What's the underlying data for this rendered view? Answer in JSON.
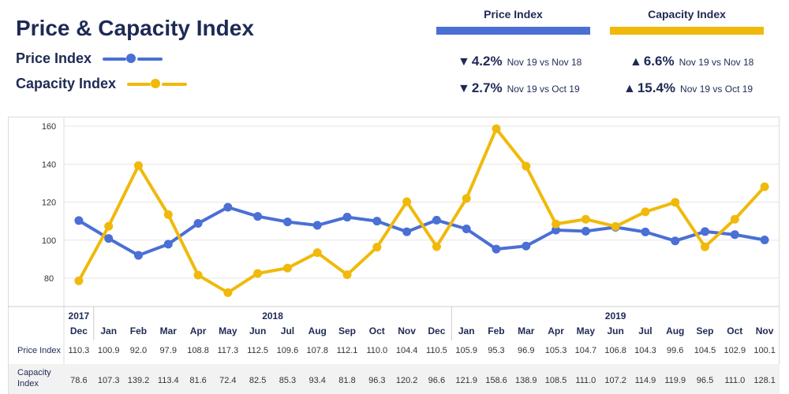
{
  "header": {
    "title": "Price & Capacity Index",
    "legend_price": "Price Index",
    "legend_capacity": "Capacity Index"
  },
  "colors": {
    "price": "#4a6fd5",
    "capacity": "#f0b90b",
    "text": "#1e2a55",
    "grid": "#e6e6e6",
    "row_alt": "#f2f2f2"
  },
  "kpis": {
    "price": {
      "heading": "Price Index",
      "change1": {
        "arrow": "▼",
        "pct": "4.2%",
        "label": "Nov 19 vs Nov 18"
      },
      "change2": {
        "arrow": "▼",
        "pct": "2.7%",
        "label": "Nov 19 vs Oct 19"
      }
    },
    "capacity": {
      "heading": "Capacity Index",
      "change1": {
        "arrow": "▲",
        "pct": "6.6%",
        "label": "Nov 19 vs Nov 18"
      },
      "change2": {
        "arrow": "▲",
        "pct": "15.4%",
        "label": "Nov 19 vs Oct 19"
      }
    }
  },
  "chart_data": {
    "type": "line",
    "ylim": [
      70,
      160
    ],
    "yticks": [
      80,
      100,
      120,
      140,
      160
    ],
    "grid": true,
    "years": [
      {
        "label": "2017",
        "start": 0,
        "end": 0
      },
      {
        "label": "2018",
        "start": 1,
        "end": 12
      },
      {
        "label": "2019",
        "start": 13,
        "end": 23
      }
    ],
    "categories": [
      "Dec",
      "Jan",
      "Feb",
      "Mar",
      "Apr",
      "May",
      "Jun",
      "Jul",
      "Aug",
      "Sep",
      "Oct",
      "Nov",
      "Dec",
      "Jan",
      "Feb",
      "Mar",
      "Apr",
      "May",
      "Jun",
      "Jul",
      "Aug",
      "Sep",
      "Oct",
      "Nov"
    ],
    "series": [
      {
        "name": "Price Index",
        "row_label": "Price Index",
        "color": "#4a6fd5",
        "values": [
          110.3,
          100.9,
          92.0,
          97.9,
          108.8,
          117.3,
          112.5,
          109.6,
          107.8,
          112.1,
          110.0,
          104.4,
          110.5,
          105.9,
          95.3,
          96.9,
          105.3,
          104.7,
          106.8,
          104.3,
          99.6,
          104.5,
          102.9,
          100.1
        ]
      },
      {
        "name": "Capacity Index",
        "row_label": "Capacity Index",
        "color": "#f0b90b",
        "values": [
          78.6,
          107.3,
          139.2,
          113.4,
          81.6,
          72.4,
          82.5,
          85.3,
          93.4,
          81.8,
          96.3,
          120.2,
          96.6,
          121.9,
          158.6,
          138.9,
          108.5,
          111.0,
          107.2,
          114.9,
          119.9,
          96.5,
          111.0,
          128.1
        ]
      }
    ]
  }
}
